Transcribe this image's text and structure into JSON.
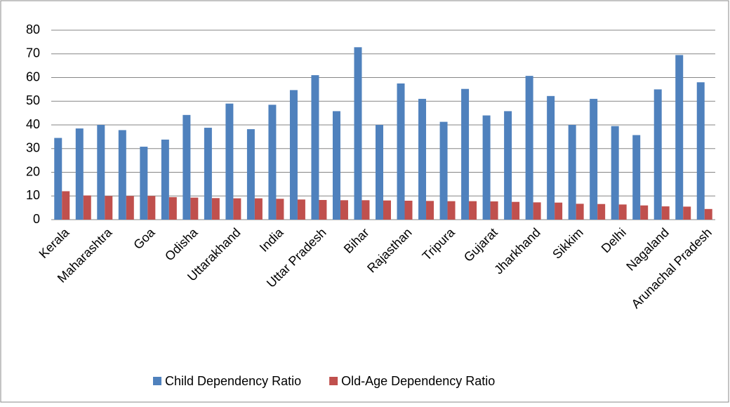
{
  "chart_data": {
    "type": "bar",
    "categories": [
      "Kerala",
      null,
      "Maharashtra",
      null,
      "Goa",
      null,
      "Odisha",
      null,
      "Uttarakhand",
      null,
      "India",
      null,
      "Uttar Pradesh",
      null,
      "Bihar",
      null,
      "Rajasthan",
      null,
      "Tripura",
      null,
      "Gujarat",
      null,
      "Jharkhand",
      null,
      "Sikkim",
      null,
      "Delhi",
      null,
      "Nagaland",
      null,
      "Arunachal Pradesh"
    ],
    "series": [
      {
        "name": "Child Dependency Ratio",
        "color": "#4f81bd",
        "values": [
          34.5,
          38.5,
          40,
          37.8,
          30.8,
          33.8,
          44.2,
          38.8,
          49,
          38.2,
          48.5,
          54.7,
          61,
          45.8,
          72.8,
          40,
          57.5,
          51,
          41.3,
          55.2,
          44,
          45.8,
          60.7,
          52.2,
          40,
          51,
          39.5,
          35.7,
          55,
          69.5,
          58
        ]
      },
      {
        "name": "Old-Age Dependency Ratio",
        "color": "#c0504d",
        "values": [
          12,
          10.2,
          10,
          10,
          10,
          9.5,
          9.3,
          9.1,
          9,
          9,
          8.8,
          8.5,
          8.3,
          8.2,
          8.2,
          8.1,
          8,
          7.9,
          7.8,
          7.8,
          7.7,
          7.5,
          7.3,
          7.2,
          6.7,
          6.6,
          6.4,
          6,
          5.6,
          5.5,
          4.5
        ]
      }
    ],
    "ylim": [
      0,
      80
    ],
    "yticks": [
      0,
      10,
      20,
      30,
      40,
      50,
      60,
      70,
      80
    ],
    "grid": true,
    "legend": "bottom"
  }
}
